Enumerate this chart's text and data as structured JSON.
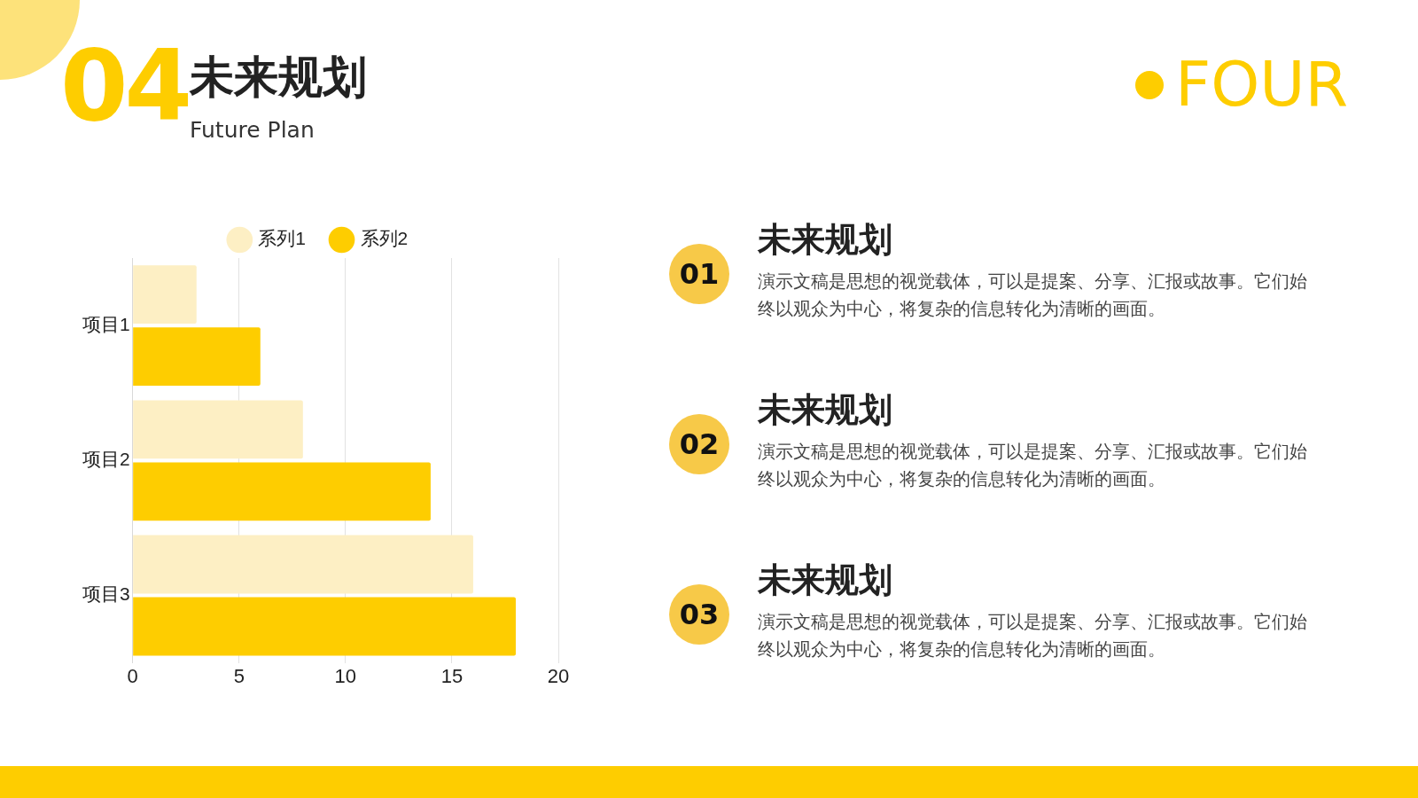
{
  "chart_data": [
    {
      "type": "bar",
      "orientation": "horizontal",
      "title": "未来规划",
      "subtitle": "Future Plan",
      "annotations": [
        "04",
        "FOUR"
      ],
      "categories": [
        "项目1",
        "项目2",
        "项目3"
      ],
      "series": [
        {
          "name": "系列1",
          "color": "#fdefc4",
          "values": [
            3,
            8,
            16
          ]
        },
        {
          "name": "系列2",
          "color": "#fecd00",
          "values": [
            6,
            14,
            18
          ]
        }
      ],
      "xlim": [
        0,
        20
      ],
      "xticks": [
        0,
        5,
        10,
        15,
        20
      ],
      "grid": "x",
      "legend": "top"
    },
    {
      "type": "other",
      "annotations": [
        "01",
        "未来规划",
        "演示文稿是思想的视觉载体，可以是提案、分享、汇报或故事。它们始终以观众为中心，将复杂的信息转化为清晰的画面。",
        "02",
        "未来规划",
        "演示文稿是思想的视觉载体，可以是提案、分享、汇报或故事。它们始终以观众为中心，将复杂的信息转化为清晰的画面。",
        "03",
        "未来规划",
        "演示文稿是思想的视觉载体，可以是提案、分享、汇报或故事。它们始终以观众为中心，将复杂的信息转化为清晰的画面。"
      ]
    }
  ]
}
